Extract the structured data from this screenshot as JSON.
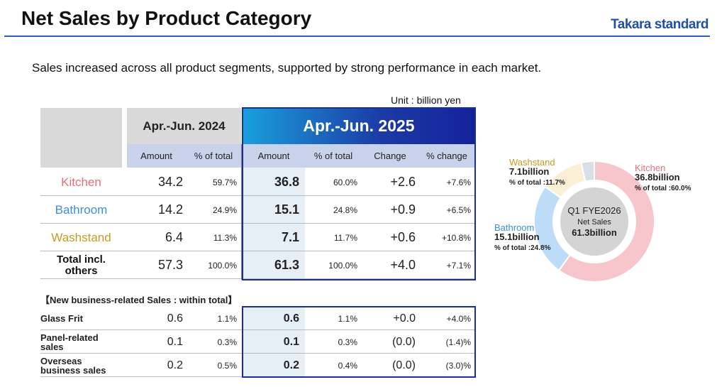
{
  "header": {
    "title": "Net Sales by Product Category",
    "logo": "Takara standard"
  },
  "subtitle": "Sales increased across all product segments, supported by strong performance in each market.",
  "unit": "Unit : billion yen",
  "table": {
    "periods": [
      "Apr.-Jun. 2024",
      "Apr.-Jun. 2025"
    ],
    "columns": [
      "Amount",
      "% of total",
      "Amount",
      "% of total",
      "Change",
      "% change"
    ],
    "rows": [
      [
        "Kitchen",
        "34.2",
        "59.7%",
        "36.8",
        "60.0%",
        "+2.6",
        "+7.6%"
      ],
      [
        "Bathroom",
        "14.2",
        "24.9%",
        "15.1",
        "24.8%",
        "+0.9",
        "+6.5%"
      ],
      [
        "Washstand",
        "6.4",
        "11.3%",
        "7.1",
        "11.7%",
        "+0.6",
        "+10.8%"
      ],
      [
        "Total incl. others",
        "57.3",
        "100.0%",
        "61.3",
        "100.0%",
        "+4.0",
        "+7.1%"
      ]
    ],
    "new_business_label": "【New business-related Sales : within total】",
    "new_business_rows": [
      [
        "Glass Frit",
        "0.6",
        "1.1%",
        "0.6",
        "1.1%",
        "+0.0",
        "+4.0%"
      ],
      [
        "Panel-related sales",
        "0.1",
        "0.3%",
        "0.1",
        "0.3%",
        "(0.0)",
        "(1.4)%"
      ],
      [
        "Overseas business sales",
        "0.2",
        "0.5%",
        "0.2",
        "0.4%",
        "(0.0)",
        "(3.0)%"
      ]
    ]
  },
  "chart_data": {
    "type": "donut",
    "categories": [
      "Kitchen",
      "Bathroom",
      "Washstand",
      null
    ],
    "values": [
      60.0,
      24.8,
      11.7,
      3.5
    ],
    "value_labels": [
      "% of total :60.0%",
      "% of total :24.8%",
      "% of total :11.7%",
      null
    ],
    "amount_labels": [
      "36.8billion",
      "15.1billion",
      "7.1billion",
      null
    ],
    "colors": [
      "#f7c6cc",
      "#bddcf8",
      "#fbf0d5",
      "#d9dee7"
    ],
    "label_colors": [
      "#e56f7a",
      "#3d8fe0",
      "#c59d22",
      null
    ],
    "center_label": [
      "Q1 FYE2026",
      "Net Sales",
      "61.3billion"
    ]
  }
}
